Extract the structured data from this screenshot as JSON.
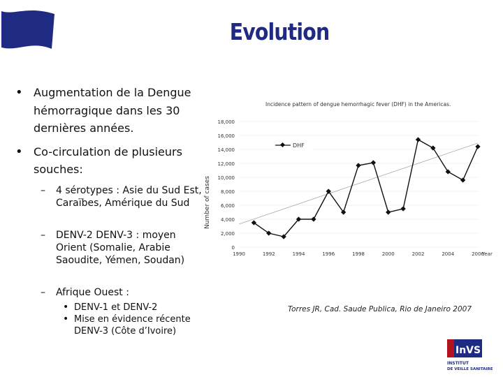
{
  "slide": {
    "title": "Evolution",
    "bullets": [
      {
        "line1": "Augmentation de la Dengue",
        "line2": "hémorragique dans les 30",
        "line3": "dernières années."
      },
      {
        "line1": "Co-circulation de plusieurs",
        "line2": "souches:"
      }
    ],
    "sub_bullets": [
      {
        "line1": "4 sérotypes : Asie du Sud Est,",
        "line2": "Caraïbes, Amérique du Sud"
      },
      {
        "line1": "DENV-2 DENV-3 : moyen",
        "line2": "Orient (Somalie, Arabie",
        "line3": "Saoudite, Yémen, Soudan)"
      },
      {
        "line1": "Afrique Ouest :"
      }
    ],
    "sub_sub_bullets": [
      {
        "line1": "DENV-1 et DENV-2"
      },
      {
        "line1": "Mise en évidence récente",
        "line2": "DENV-3 (Côte d’Ivoire)"
      }
    ],
    "citation": "Torres JR, Cad. Saude Publica, Rio de Janeiro 2007",
    "logo": {
      "brand": "InVS",
      "line1": "INSTITUT",
      "line2": "DE VEILLE SANITAIRE"
    }
  },
  "colors": {
    "title": "#1f2b83",
    "flag": "#1f2b83",
    "logo_red": "#b3121f",
    "line": "#111111",
    "trend": "#aaaaaa"
  },
  "chart_data": {
    "type": "line",
    "title": "Incidence pattern of dengue hemorrhagic fever (DHF) in the Americas.",
    "xlabel": "Year",
    "ylabel": "Number of cases",
    "xlim": [
      1990,
      2006
    ],
    "ylim": [
      0,
      18000
    ],
    "yticks": [
      0,
      2000,
      4000,
      6000,
      8000,
      10000,
      12000,
      14000,
      16000,
      18000
    ],
    "ytick_labels": [
      "0",
      "2,000",
      "4,000",
      "6,000",
      "8,000",
      "10,000",
      "12,000",
      "14,000",
      "16,000",
      "18,000"
    ],
    "xticks": [
      1990,
      1992,
      1994,
      1996,
      1998,
      2000,
      2002,
      2004,
      2006
    ],
    "xtick_labels": [
      "1990",
      "1992",
      "1994",
      "1996",
      "1998",
      "2000",
      "2002",
      "2004",
      "2006"
    ],
    "series": [
      {
        "name": "DHF",
        "x": [
          1991,
          1992,
          1993,
          1994,
          1995,
          1996,
          1997,
          1998,
          1999,
          2000,
          2001,
          2002,
          2003,
          2004,
          2005,
          2006
        ],
        "values": [
          3500,
          2000,
          1500,
          4000,
          4000,
          8000,
          5000,
          11700,
          12100,
          5000,
          5500,
          15400,
          14200,
          10800,
          9600,
          14400
        ]
      }
    ],
    "trend": {
      "x": [
        1990,
        2006
      ],
      "values": [
        3300,
        14900
      ]
    },
    "legend": "top-left"
  }
}
